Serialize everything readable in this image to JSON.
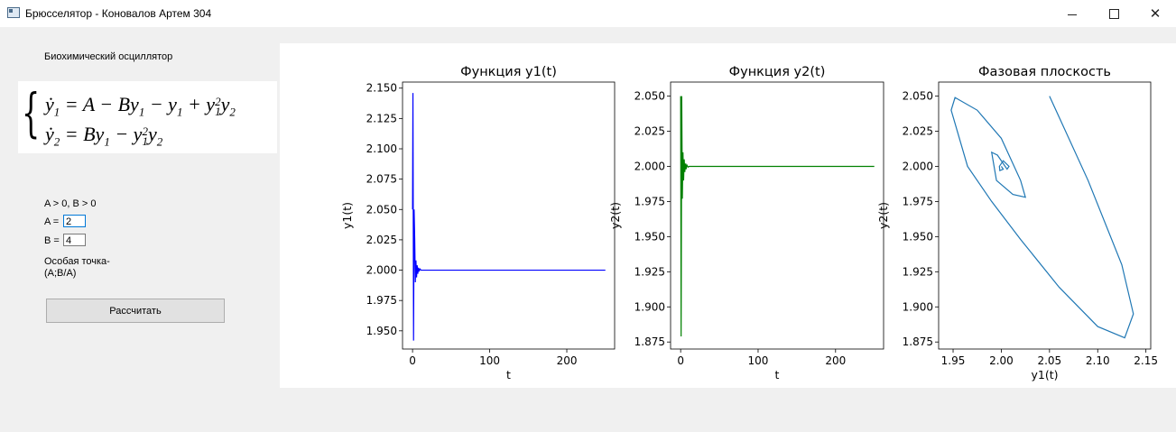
{
  "window": {
    "title": "Брюсселятор - Коновалов Артем 304",
    "colors": {
      "titlebar": "#ffffff",
      "body": "#f0f0f0"
    }
  },
  "left_panel": {
    "heading": "Биохимический осциллятор",
    "equations": {
      "line1": {
        "lhs": "y",
        "lhs_sub": "1",
        "rhs": "= A − By",
        "t1_sub": "1",
        "t2": "− y",
        "t2_sub": "1",
        "t3": "+ y",
        "t3_sup": "2",
        "t3_sub": "1",
        "t4": "y",
        "t4_sub": "2"
      },
      "line2": {
        "lhs": "y",
        "lhs_sub": "2",
        "rhs": "= By",
        "t1_sub": "1",
        "t2": "− y",
        "t2_sup": "2",
        "t2_sub": "1",
        "t3": "y",
        "t3_sub": "2"
      }
    },
    "condition": "A > 0, B > 0",
    "a_label": "A =",
    "a_value": "2",
    "b_label": "B =",
    "b_value": "4",
    "singular_point_line1": "Особая точка-",
    "singular_point_line2": "(A;B/A)",
    "calc_button": "Рассчитать"
  },
  "chart_data": [
    {
      "type": "line",
      "title": "Функция y1(t)",
      "xlabel": "t",
      "ylabel": "y1(t)",
      "xlim": [
        -13,
        262
      ],
      "ylim": [
        1.935,
        2.155
      ],
      "xticks": [
        "0",
        "100",
        "200"
      ],
      "xtick_values": [
        0,
        100,
        200
      ],
      "yticks": [
        "1.950",
        "1.975",
        "2.000",
        "2.025",
        "2.050",
        "2.075",
        "2.100",
        "2.125",
        "2.150"
      ],
      "ytick_values": [
        1.95,
        1.975,
        2.0,
        2.025,
        2.05,
        2.075,
        2.1,
        2.125,
        2.15
      ],
      "color": "#0000ff",
      "x": [
        0,
        0.5,
        1.3,
        2.0,
        2.8,
        3.6,
        4.4,
        5.2,
        6.0,
        6.8,
        7.6,
        8.5,
        9.5,
        11,
        13,
        16,
        20,
        250
      ],
      "y": [
        2.05,
        2.146,
        1.942,
        2.05,
        2.026,
        1.99,
        2.008,
        1.994,
        2.004,
        1.997,
        2.002,
        1.999,
        2.001,
        2.0,
        2.0,
        2.0,
        2.0,
        2.0
      ]
    },
    {
      "type": "line",
      "title": "Функция y2(t)",
      "xlabel": "t",
      "ylabel": "y2(t)",
      "xlim": [
        -13,
        262
      ],
      "ylim": [
        1.87,
        2.06
      ],
      "xticks": [
        "0",
        "100",
        "200"
      ],
      "xtick_values": [
        0,
        100,
        200
      ],
      "yticks": [
        "1.875",
        "1.900",
        "1.925",
        "1.950",
        "1.975",
        "2.000",
        "2.025",
        "2.050"
      ],
      "ytick_values": [
        1.875,
        1.9,
        1.925,
        1.95,
        1.975,
        2.0,
        2.025,
        2.05
      ],
      "color": "#008000",
      "x": [
        0,
        0.6,
        1.4,
        2.2,
        3.0,
        3.8,
        4.6,
        5.4,
        6.2,
        7.0,
        8.0,
        9.5,
        11,
        14,
        20,
        250
      ],
      "y": [
        2.05,
        1.879,
        2.05,
        1.977,
        2.01,
        1.99,
        2.005,
        1.996,
        2.002,
        1.998,
        2.001,
        1.9995,
        2.0,
        2.0,
        2.0,
        2.0
      ]
    },
    {
      "type": "line",
      "title": "Фазовая плоскость",
      "xlabel": "y1(t)",
      "ylabel": "y2(t)",
      "xlim": [
        1.935,
        2.155
      ],
      "ylim": [
        1.87,
        2.06
      ],
      "xticks": [
        "1.95",
        "2.00",
        "2.05",
        "2.10",
        "2.15"
      ],
      "xtick_values": [
        1.95,
        2.0,
        2.05,
        2.1,
        2.15
      ],
      "yticks": [
        "1.875",
        "1.900",
        "1.925",
        "1.950",
        "1.975",
        "2.000",
        "2.025",
        "2.050"
      ],
      "ytick_values": [
        1.875,
        1.9,
        1.925,
        1.95,
        1.975,
        2.0,
        2.025,
        2.05
      ],
      "color": "#1f77b4",
      "x": [
        2.05,
        2.09,
        2.125,
        2.137,
        2.128,
        2.1,
        2.06,
        2.02,
        1.99,
        1.965,
        1.948,
        1.952,
        1.975,
        2.0,
        2.02,
        2.025,
        2.012,
        1.995,
        1.99,
        1.996,
        2.006,
        2.008,
        2.002,
        1.998,
        1.9985,
        2.002,
        2.0
      ],
      "y": [
        2.05,
        1.99,
        1.93,
        1.895,
        1.878,
        1.886,
        1.914,
        1.948,
        1.975,
        2.0,
        2.04,
        2.049,
        2.04,
        2.02,
        1.99,
        1.978,
        1.98,
        1.99,
        2.01,
        2.008,
        1.998,
        2.0,
        2.004,
        2.0,
        1.997,
        1.998,
        2.0
      ]
    }
  ]
}
